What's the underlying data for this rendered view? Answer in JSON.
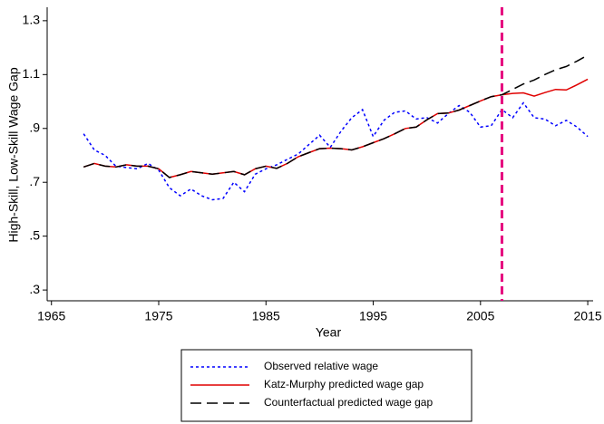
{
  "chart_data": {
    "type": "line",
    "xlabel": "Year",
    "ylabel": "High-Skill, Low-Skill Wage Gap",
    "x": [
      1968,
      1969,
      1970,
      1971,
      1972,
      1973,
      1974,
      1975,
      1976,
      1977,
      1978,
      1979,
      1980,
      1981,
      1982,
      1983,
      1984,
      1985,
      1986,
      1987,
      1988,
      1989,
      1990,
      1991,
      1992,
      1993,
      1994,
      1995,
      1996,
      1997,
      1998,
      1999,
      2000,
      2001,
      2002,
      2003,
      2004,
      2005,
      2006,
      2007,
      2008,
      2009,
      2010,
      2011,
      2012,
      2013,
      2014,
      2015
    ],
    "series": [
      {
        "name": "Observed relative wage",
        "color": "#0000ff",
        "dash": "3,3",
        "values": [
          0.88,
          0.82,
          0.8,
          0.76,
          0.755,
          0.75,
          0.77,
          0.745,
          0.68,
          0.65,
          0.675,
          0.65,
          0.635,
          0.64,
          0.7,
          0.665,
          0.73,
          0.75,
          0.765,
          0.785,
          0.805,
          0.84,
          0.875,
          0.83,
          0.89,
          0.94,
          0.97,
          0.87,
          0.93,
          0.96,
          0.965,
          0.935,
          0.94,
          0.92,
          0.955,
          0.985,
          0.96,
          0.905,
          0.91,
          0.97,
          0.94,
          0.995,
          0.94,
          0.935,
          0.91,
          0.93,
          0.905,
          0.87
        ]
      },
      {
        "name": "Katz-Murphy predicted wage gap",
        "color": "#e00000",
        "dash": "none",
        "values": [
          0.757,
          0.77,
          0.76,
          0.757,
          0.765,
          0.76,
          0.76,
          0.75,
          0.718,
          0.728,
          0.74,
          0.735,
          0.73,
          0.735,
          0.74,
          0.728,
          0.75,
          0.76,
          0.752,
          0.77,
          0.795,
          0.81,
          0.825,
          0.827,
          0.825,
          0.82,
          0.832,
          0.847,
          0.862,
          0.88,
          0.9,
          0.905,
          0.932,
          0.955,
          0.957,
          0.968,
          0.985,
          1.002,
          1.018,
          1.025,
          1.03,
          1.032,
          1.02,
          1.033,
          1.045,
          1.043,
          1.062,
          1.083
        ]
      },
      {
        "name": "Counterfactual predicted wage gap",
        "color": "#000000",
        "dash": "12,6",
        "values": [
          0.757,
          0.77,
          0.76,
          0.757,
          0.765,
          0.76,
          0.76,
          0.75,
          0.718,
          0.728,
          0.74,
          0.735,
          0.73,
          0.735,
          0.74,
          0.728,
          0.75,
          0.76,
          0.752,
          0.77,
          0.795,
          0.81,
          0.825,
          0.827,
          0.825,
          0.82,
          0.832,
          0.847,
          0.862,
          0.88,
          0.9,
          0.905,
          0.932,
          0.955,
          0.957,
          0.968,
          0.985,
          1.002,
          1.018,
          1.025,
          1.045,
          1.065,
          1.08,
          1.1,
          1.118,
          1.13,
          1.15,
          1.172
        ]
      }
    ],
    "vline": {
      "x": 2007,
      "color": "#e6007e"
    },
    "xlim": [
      1964.6,
      2015.5
    ],
    "xticks": [
      1965,
      1975,
      1985,
      1995,
      2005,
      2015
    ],
    "ylim": [
      0.26,
      1.35
    ],
    "yticks": [
      {
        "value": 0.3,
        "label": ".3"
      },
      {
        "value": 0.5,
        "label": ".5"
      },
      {
        "value": 0.7,
        "label": ".7"
      },
      {
        "value": 0.9,
        "label": ".9"
      },
      1.1,
      1.3
    ]
  }
}
